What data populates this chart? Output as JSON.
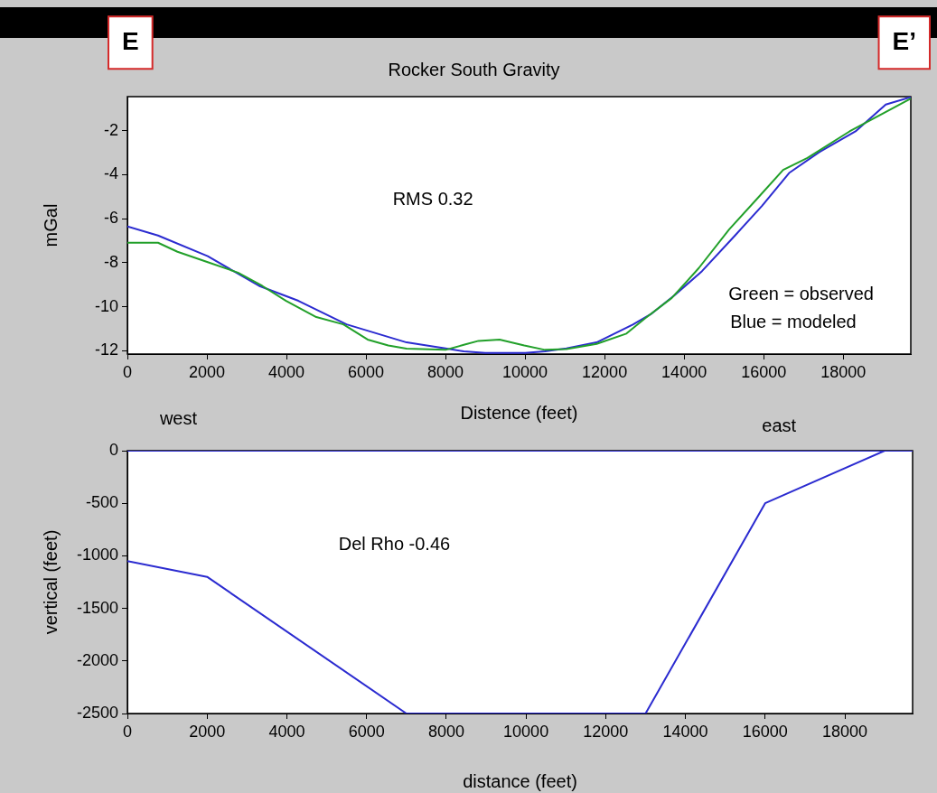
{
  "chart_data": [
    {
      "type": "line",
      "title": "Rocker South Gravity",
      "xlabel": "Distence (feet)",
      "ylabel": "mGal",
      "annotations": [
        "E",
        "E’",
        "RMS 0.32",
        "Green = observed",
        "Blue = modeled"
      ],
      "xlim": [
        0,
        19700
      ],
      "xticks": [
        0,
        2000,
        4000,
        6000,
        8000,
        10000,
        12000,
        14000,
        16000,
        18000
      ],
      "ylim": [
        -12.15,
        -0.45
      ],
      "yticks": [
        -12,
        -10,
        -8,
        -6,
        -4,
        -2
      ],
      "grid": false,
      "marker": "none",
      "legend": false,
      "series": [
        {
          "color": "#22a02a",
          "x": [
            0,
            770,
            1260,
            2020,
            2780,
            3390,
            3990,
            4750,
            5430,
            6040,
            6560,
            7020,
            8000,
            8460,
            8830,
            9360,
            9980,
            10500,
            11040,
            11800,
            12550,
            13010,
            13690,
            14370,
            15130,
            15810,
            16490,
            17100,
            18160,
            18990,
            19700
          ],
          "values": [
            -7.09,
            -7.09,
            -7.5,
            -7.97,
            -8.45,
            -9.05,
            -9.73,
            -10.47,
            -10.8,
            -11.49,
            -11.76,
            -11.9,
            -11.96,
            -11.73,
            -11.55,
            -11.49,
            -11.76,
            -11.96,
            -11.92,
            -11.69,
            -11.22,
            -10.54,
            -9.6,
            -8.24,
            -6.49,
            -5.14,
            -3.78,
            -3.24,
            -2.03,
            -1.22,
            -0.54
          ]
        },
        {
          "color": "#2b2bd0",
          "x": [
            0,
            770,
            2020,
            3310,
            4300,
            5510,
            7020,
            8000,
            8460,
            9000,
            10000,
            10500,
            11040,
            11800,
            12710,
            13160,
            13770,
            14450,
            15280,
            15960,
            16640,
            17400,
            18310,
            19070,
            19700
          ],
          "values": [
            -6.35,
            -6.76,
            -7.7,
            -9.05,
            -9.73,
            -10.8,
            -11.62,
            -11.89,
            -12.03,
            -12.1,
            -12.1,
            -12.03,
            -11.89,
            -11.62,
            -10.81,
            -10.34,
            -9.46,
            -8.38,
            -6.76,
            -5.41,
            -3.92,
            -2.97,
            -2.03,
            -0.81,
            -0.47
          ]
        }
      ]
    },
    {
      "type": "line",
      "xlabel": "distance (feet)",
      "ylabel": "vertical (feet)",
      "annotations": [
        "Del Rho -0.46",
        "west",
        "east"
      ],
      "xlim": [
        0,
        19700
      ],
      "xticks": [
        0,
        2000,
        4000,
        6000,
        8000,
        10000,
        12000,
        14000,
        16000,
        18000
      ],
      "ylim": [
        -2500,
        0
      ],
      "yticks": [
        -2500,
        -2000,
        -1500,
        -1000,
        -500,
        0
      ],
      "grid": false,
      "marker": "none",
      "legend": false,
      "series": [
        {
          "color": "#2b2bd0",
          "x": [
            0,
            19700
          ],
          "values": [
            0,
            0
          ]
        },
        {
          "color": "#2b2bd0",
          "x": [
            0,
            2000,
            7000,
            13000,
            16000,
            19000
          ],
          "values": [
            -1050,
            -1200,
            -2500,
            -2500,
            -500,
            0
          ]
        }
      ]
    }
  ]
}
